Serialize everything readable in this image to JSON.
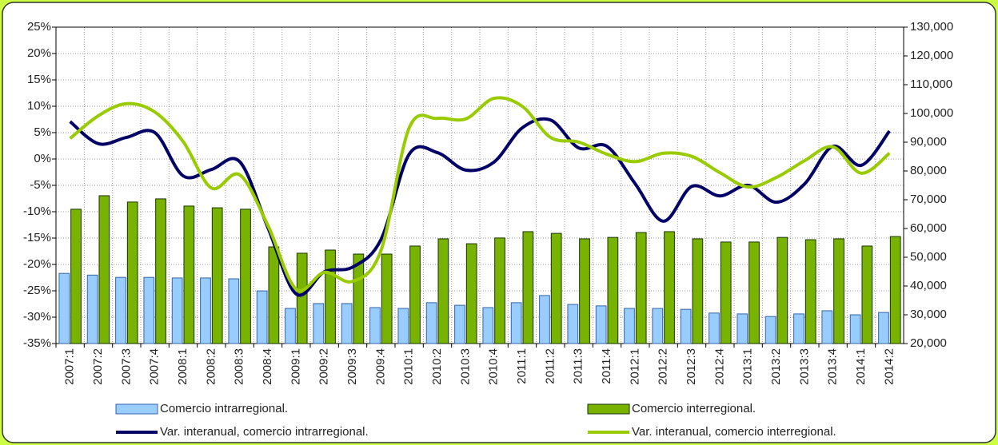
{
  "chart_data": {
    "type": "combo",
    "categories": [
      "2007:1",
      "2007:2",
      "2007:3",
      "2007:4",
      "2008:1",
      "2008:2",
      "2008:3",
      "2008:4",
      "2009:1",
      "2009:2",
      "2009:3",
      "2009:4",
      "2010:1",
      "2010:2",
      "2010:3",
      "2010:4",
      "2011:1",
      "2011:2",
      "2011:3",
      "2011:4",
      "2012:1",
      "2012:2",
      "2012:3",
      "2012:4",
      "2013:1",
      "2013:2",
      "2013:3",
      "2013:4",
      "2014:1",
      "2014:2"
    ],
    "series": [
      {
        "name": "Comercio intrarregional.",
        "type": "bar",
        "axis": "y2",
        "color": "#99ccff",
        "values": [
          44400,
          43800,
          43000,
          43000,
          42800,
          42800,
          42500,
          38300,
          32200,
          33900,
          33900,
          32500,
          32200,
          34200,
          33300,
          32500,
          34200,
          36700,
          33600,
          33100,
          32200,
          32200,
          31900,
          30600,
          30300,
          29400,
          30300,
          31400,
          30000,
          30800
        ]
      },
      {
        "name": "Comercio interregional.",
        "type": "bar",
        "axis": "y2",
        "color": "#77b300",
        "values": [
          66700,
          71400,
          69200,
          70300,
          67800,
          67200,
          66700,
          53600,
          51400,
          52500,
          51100,
          51100,
          53900,
          56400,
          54700,
          56700,
          58900,
          58300,
          56400,
          56900,
          58600,
          58900,
          56400,
          55300,
          55300,
          56900,
          56100,
          56400,
          53900,
          57200
        ]
      },
      {
        "name": "Var. interanual, comercio intrarregional.",
        "type": "line",
        "color": "#000066",
        "values": [
          7.1,
          2.9,
          4.1,
          5,
          -3.2,
          -2,
          -0.5,
          -13,
          -25.6,
          -21.4,
          -20.5,
          -15.3,
          0.9,
          1.2,
          -2.1,
          -0.6,
          5.9,
          7.4,
          2.1,
          2.4,
          -4.7,
          -11.8,
          -5.2,
          -7,
          -5,
          -8.2,
          -4.7,
          2.4,
          -1.2,
          5.3
        ]
      },
      {
        "name": "Var. interanual, comercio interregional.",
        "type": "line",
        "color": "#99cc00",
        "values": [
          3.9,
          8.2,
          10.5,
          8.9,
          3.3,
          -5.5,
          -3,
          -12.6,
          -24.7,
          -21.5,
          -23.2,
          -17.4,
          5.9,
          7.7,
          7.6,
          11.5,
          10,
          4.1,
          3.2,
          0.9,
          -0.5,
          1.1,
          0.5,
          -2.6,
          -5.3,
          -3.5,
          -0.3,
          2.3,
          -2.7,
          1.1
        ]
      }
    ],
    "ylim": [
      -35,
      25
    ],
    "yticks": [
      {
        "value": -35,
        "label": "-35%"
      },
      {
        "value": -30,
        "label": "-30%"
      },
      {
        "value": -25,
        "label": "-25%"
      },
      {
        "value": -20,
        "label": "-20%"
      },
      {
        "value": -15,
        "label": "-15%"
      },
      {
        "value": -10,
        "label": "-10%"
      },
      {
        "value": -5,
        "label": "-5%"
      },
      {
        "value": 0,
        "label": "0%"
      },
      {
        "value": 5,
        "label": "5%"
      },
      {
        "value": 10,
        "label": "10%"
      },
      {
        "value": 15,
        "label": "15%"
      },
      {
        "value": 20,
        "label": "20%"
      },
      {
        "value": 25,
        "label": "25%"
      }
    ],
    "y2lim": [
      20000,
      130000
    ],
    "y2ticks": [
      {
        "value": 20000,
        "label": "20,000"
      },
      {
        "value": 30000,
        "label": "30,000"
      },
      {
        "value": 40000,
        "label": "40,000"
      },
      {
        "value": 50000,
        "label": "50,000"
      },
      {
        "value": 60000,
        "label": "60,000"
      },
      {
        "value": 70000,
        "label": "70,000"
      },
      {
        "value": 80000,
        "label": "80,000"
      },
      {
        "value": 90000,
        "label": "90,000"
      },
      {
        "value": 100000,
        "label": "100,000"
      },
      {
        "value": 110000,
        "label": "110,000"
      },
      {
        "value": 120000,
        "label": "120,000"
      },
      {
        "value": 130000,
        "label": "130,000"
      }
    ],
    "grid": true
  }
}
